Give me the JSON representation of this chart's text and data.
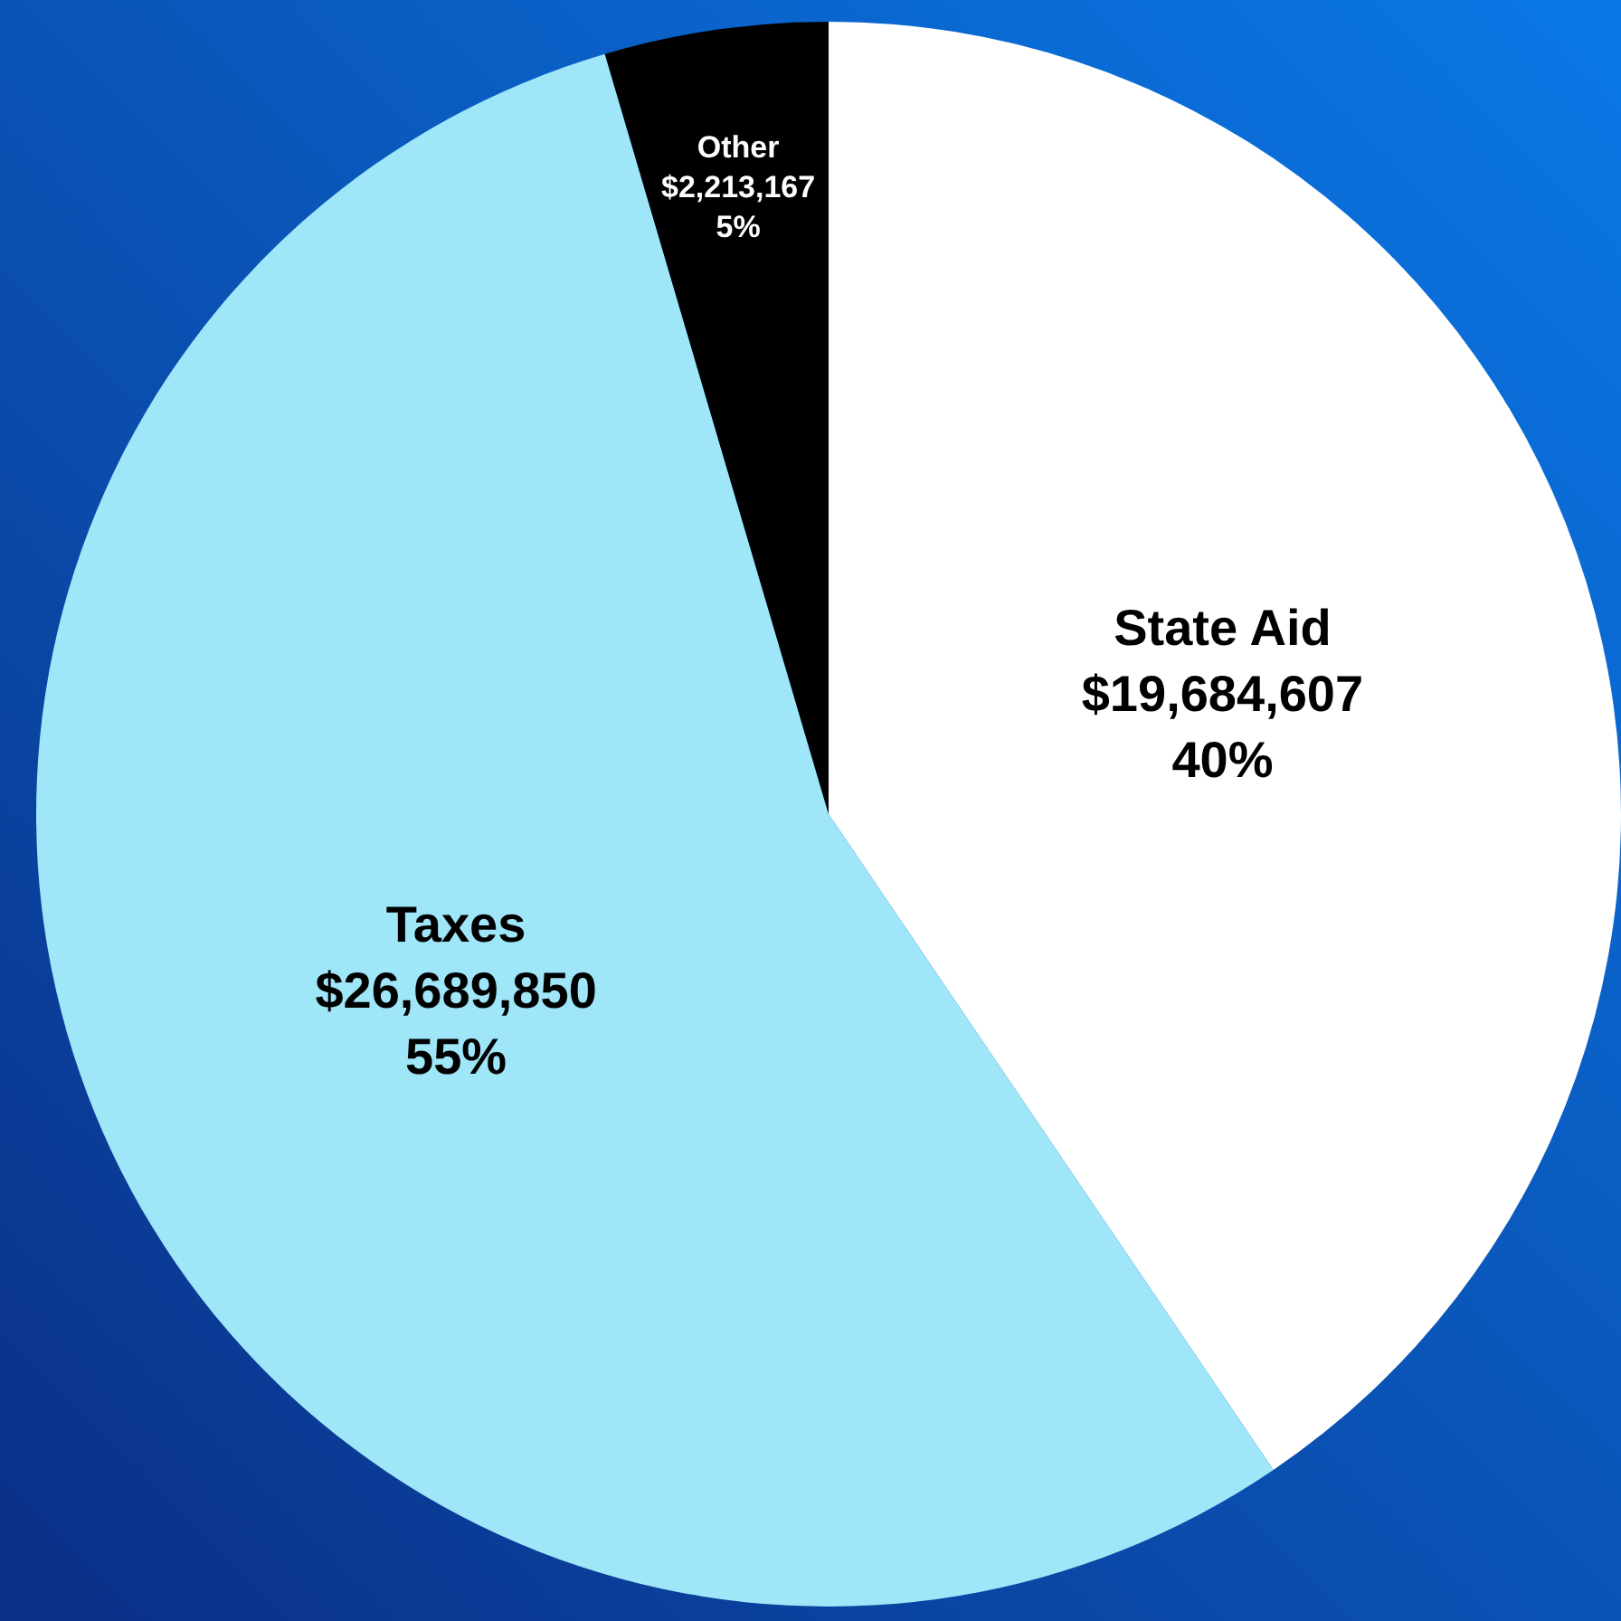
{
  "chart_data": {
    "type": "pie",
    "categories": [
      "State Aid",
      "Taxes",
      "Other"
    ],
    "values": [
      19684607,
      26689850,
      2213167
    ],
    "colors": [
      "#ffffff",
      "#9ee6f8",
      "#000000"
    ],
    "value_labels": [
      "$19,684,607\n40%",
      "$26,689,850\n55%",
      "$2,213,167\n5%"
    ]
  }
}
